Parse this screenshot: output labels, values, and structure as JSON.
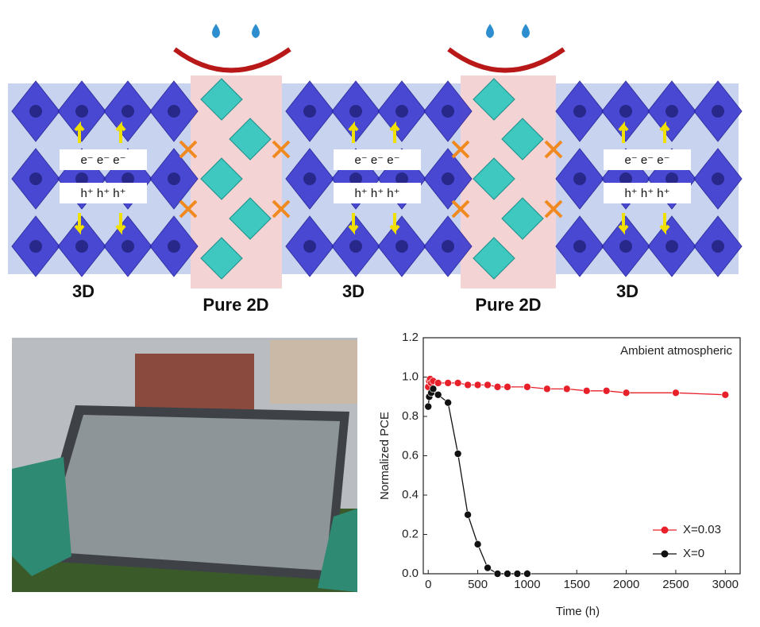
{
  "diagram": {
    "blocks": [
      {
        "electrons": "e⁻ e⁻ e⁻",
        "holes": "h⁺ h⁺ h⁺",
        "label": "3D"
      },
      {
        "electrons": "e⁻ e⁻ e⁻",
        "holes": "h⁺ h⁺ h⁺",
        "label": "3D"
      },
      {
        "electrons": "e⁻ e⁻ e⁻",
        "holes": "h⁺ h⁺ h⁺",
        "label": "3D"
      }
    ],
    "layers": [
      {
        "label": "Pure 2D"
      },
      {
        "label": "Pure 2D"
      }
    ]
  },
  "chart_data": {
    "type": "line",
    "xlabel": "Time (h)",
    "ylabel": "Normalized PCE",
    "annotation": "Ambient atmospheric",
    "xlim": [
      -50,
      3150
    ],
    "ylim": [
      0,
      1.2
    ],
    "xticks": [
      0,
      500,
      1000,
      1500,
      2000,
      2500,
      3000
    ],
    "yticks": [
      {
        "value": 0,
        "label": "0.0"
      },
      {
        "value": 0.2,
        "label": "0.2"
      },
      {
        "value": 0.4,
        "label": "0.4"
      },
      {
        "value": 0.6,
        "label": "0.6"
      },
      {
        "value": 0.8,
        "label": "0.8"
      },
      {
        "value": 1.0,
        "label": "1.0"
      },
      {
        "value": 1.2,
        "label": "1.2"
      }
    ],
    "legend": "lower right",
    "series": [
      {
        "name": "X=0.03",
        "color": "#e8202a",
        "x": [
          0,
          10,
          20,
          30,
          50,
          100,
          200,
          300,
          400,
          500,
          600,
          700,
          800,
          1000,
          1200,
          1400,
          1600,
          1800,
          2000,
          2500,
          3000
        ],
        "values": [
          0.95,
          0.98,
          0.99,
          0.97,
          0.98,
          0.97,
          0.97,
          0.97,
          0.96,
          0.96,
          0.96,
          0.95,
          0.95,
          0.95,
          0.94,
          0.94,
          0.93,
          0.93,
          0.92,
          0.92,
          0.91
        ]
      },
      {
        "name": "X=0",
        "color": "#111111",
        "x": [
          0,
          10,
          30,
          50,
          100,
          200,
          300,
          400,
          500,
          600,
          700,
          800,
          900,
          1000
        ],
        "values": [
          0.85,
          0.9,
          0.92,
          0.94,
          0.91,
          0.87,
          0.61,
          0.3,
          0.15,
          0.03,
          0,
          0,
          0,
          0
        ]
      }
    ]
  }
}
